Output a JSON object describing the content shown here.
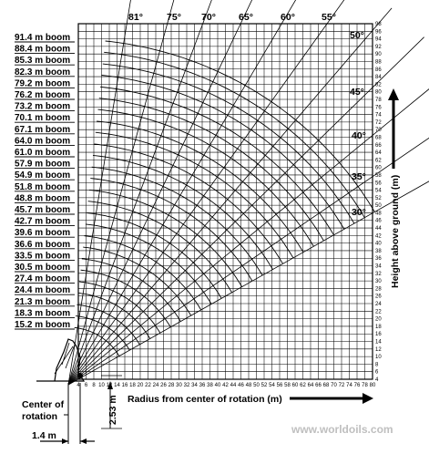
{
  "chart_data": {
    "type": "line",
    "xlabel": "Radius from center of rotation (m)",
    "ylabel": "Height above ground (m)",
    "xlim": [
      4,
      80
    ],
    "ylim": [
      4,
      98
    ],
    "x_ticks": [
      "4",
      "6",
      "8",
      "10",
      "12",
      "14",
      "16",
      "18",
      "20",
      "22",
      "24",
      "26",
      "28",
      "30",
      "32",
      "34",
      "36",
      "38",
      "40",
      "42",
      "44",
      "46",
      "48",
      "50",
      "52",
      "54",
      "56",
      "58",
      "60",
      "62",
      "64",
      "66",
      "68",
      "70",
      "72",
      "74",
      "76",
      "78",
      "80"
    ],
    "y_ticks": [
      "4",
      "6",
      "8",
      "10",
      "12",
      "14",
      "16",
      "18",
      "20",
      "22",
      "24",
      "26",
      "28",
      "30",
      "32",
      "34",
      "36",
      "38",
      "40",
      "42",
      "44",
      "46",
      "48",
      "50",
      "52",
      "54",
      "56",
      "58",
      "60",
      "62",
      "64",
      "66",
      "68",
      "70",
      "72",
      "74",
      "76",
      "78",
      "80",
      "82",
      "84",
      "86",
      "88",
      "90",
      "92",
      "94",
      "96",
      "98"
    ],
    "booms": [
      "91.4 m boom",
      "88.4 m boom",
      "85.3 m boom",
      "82.3 m boom",
      "79.2 m boom",
      "76.2 m boom",
      "73.2 m boom",
      "70.1 m boom",
      "67.1 m boom",
      "64.0 m boom",
      "61.0 m boom",
      "57.9 m boom",
      "54.9 m boom",
      "51.8 m boom",
      "48.8 m boom",
      "45.7 m boom",
      "42.7 m boom",
      "39.6 m boom",
      "36.6 m boom",
      "33.5 m boom",
      "30.5 m boom",
      "27.4 m boom",
      "24.4 m boom",
      "21.3 m boom",
      "18.3 m boom",
      "15.2 m boom"
    ],
    "boom_lengths": [
      91.4,
      88.4,
      85.3,
      82.3,
      79.2,
      76.2,
      73.2,
      70.1,
      67.1,
      64.0,
      61.0,
      57.9,
      54.9,
      51.8,
      48.8,
      45.7,
      42.7,
      39.6,
      36.6,
      33.5,
      30.5,
      27.4,
      24.4,
      21.3,
      18.3,
      15.2
    ],
    "top_angles": [
      "81°",
      "75°",
      "70°",
      "65°",
      "60°",
      "55°"
    ],
    "side_angles": [
      "50°",
      "45°",
      "40°",
      "35°",
      "30°"
    ],
    "angles_deg": [
      81,
      75,
      70,
      65,
      60,
      55,
      50,
      45,
      40,
      35,
      30
    ],
    "pivot": {
      "x": 1.4,
      "y": 2.53
    },
    "grid": true
  },
  "annotations": {
    "center_of_rotation": "Center of rotation",
    "center_line_1": "Center of",
    "center_line_2": "rotation",
    "offset_horizontal": "1.4 m",
    "offset_vertical": "2.53 m"
  },
  "watermark": "www.worldoils.com"
}
